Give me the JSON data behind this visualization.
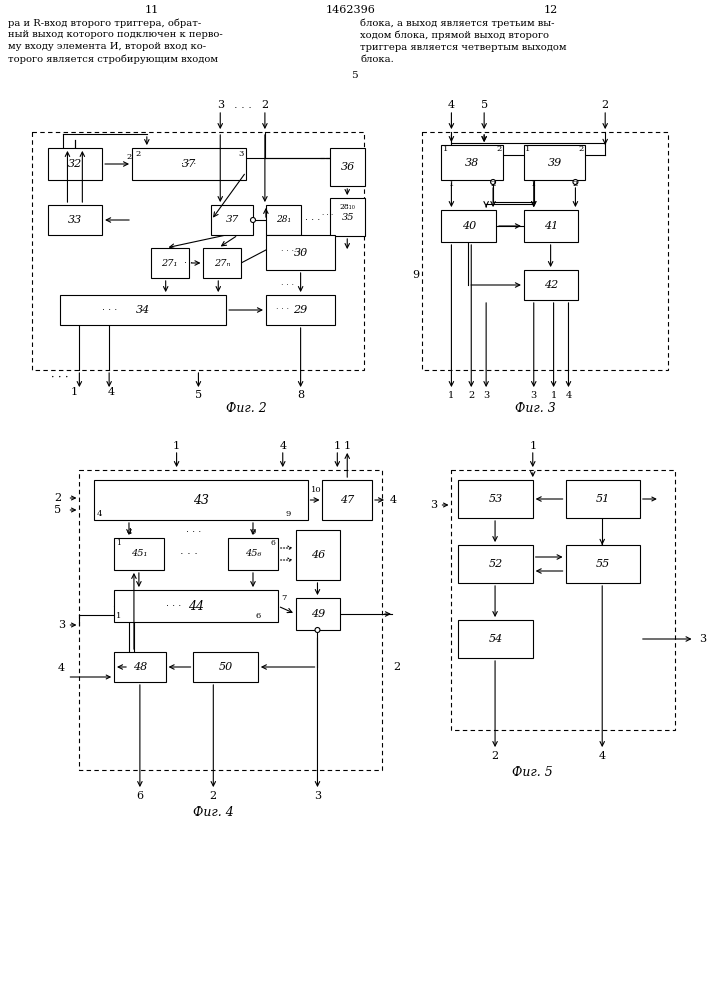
{
  "bg_color": "#ffffff",
  "line_color": "#000000",
  "text_color": "#000000",
  "fig2_label": "Фиг. 2",
  "fig3_label": "Фиг. 3",
  "fig4_label": "Фиг. 4",
  "fig5_label": "Фиг. 5"
}
